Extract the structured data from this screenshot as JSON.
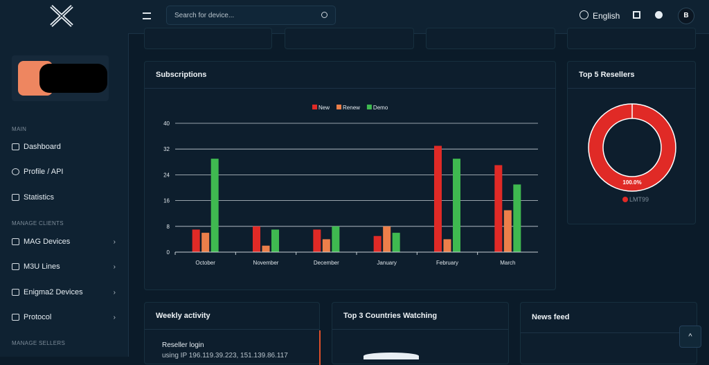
{
  "topbar": {
    "search_placeholder": "Search for device...",
    "language": "English",
    "avatar": "B"
  },
  "sidebar": {
    "sections": [
      {
        "label": "MAIN",
        "items": [
          "Dashboard",
          "Profile / API",
          "Statistics"
        ]
      },
      {
        "label": "MANAGE CLIENTS",
        "items": [
          "MAG Devices",
          "M3U Lines",
          "Enigma2 Devices",
          "Protocol"
        ]
      },
      {
        "label": "MANAGE SELLERS",
        "items": []
      }
    ]
  },
  "cards": {
    "weekly_activity": {
      "title": "Weekly activity",
      "entry_title": "Reseller login",
      "entry_text": "using IP 196.119.39.223, 151.139.86.117"
    },
    "countries": {
      "title": "Top 3 Countries Watching"
    },
    "news": {
      "title": "News feed"
    }
  },
  "chart_data": [
    {
      "type": "bar",
      "title": "Subscriptions",
      "categories": [
        "October",
        "November",
        "December",
        "January",
        "February",
        "March"
      ],
      "series": [
        {
          "name": "New",
          "color": "#e02a26",
          "values": [
            7,
            8,
            7,
            5,
            33,
            27
          ]
        },
        {
          "name": "Renew",
          "color": "#ec7f4a",
          "values": [
            6,
            2,
            4,
            8,
            4,
            13
          ]
        },
        {
          "name": "Demo",
          "color": "#3fb950",
          "values": [
            29,
            7,
            8,
            6,
            29,
            21
          ]
        }
      ],
      "ylim": [
        0,
        40
      ],
      "yticks": [
        0,
        8,
        16,
        24,
        32,
        40
      ],
      "grid": true,
      "legend": "top"
    },
    {
      "type": "donut",
      "title": "Top 5 Resellers",
      "categories": [
        "LMT99"
      ],
      "values": [
        100
      ],
      "value_labels": [
        "100.0%"
      ],
      "colors": [
        "#e02a26"
      ],
      "legend": "bottom"
    }
  ]
}
